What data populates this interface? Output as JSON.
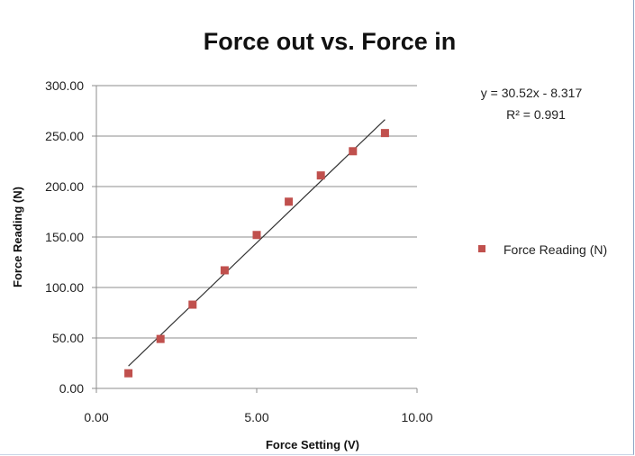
{
  "chart_data": {
    "type": "scatter",
    "title": "Force out vs. Force in",
    "xlabel": "Force Setting (V)",
    "ylabel": "Force Reading (N)",
    "xlim": [
      0,
      10
    ],
    "ylim": [
      0,
      300
    ],
    "x_ticks": [
      "0.00",
      "5.00",
      "10.00"
    ],
    "y_ticks": [
      "0.00",
      "50.00",
      "100.00",
      "150.00",
      "200.00",
      "250.00",
      "300.00"
    ],
    "grid": "horizontal",
    "legend_position": "right",
    "series": [
      {
        "name": "Force Reading (N)",
        "color": "#c0504d",
        "marker": "square",
        "x": [
          1,
          2,
          3,
          4,
          5,
          6,
          7,
          8,
          9
        ],
        "y": [
          15,
          49,
          83,
          117,
          152,
          185,
          211,
          235,
          253
        ]
      }
    ],
    "trendline": {
      "type": "linear",
      "slope": 30.52,
      "intercept": -8.317,
      "x_range": [
        1,
        9
      ],
      "color": "#333333",
      "equation": "y = 30.52x - 8.317",
      "r_squared_label": "R² = 0.991"
    }
  }
}
